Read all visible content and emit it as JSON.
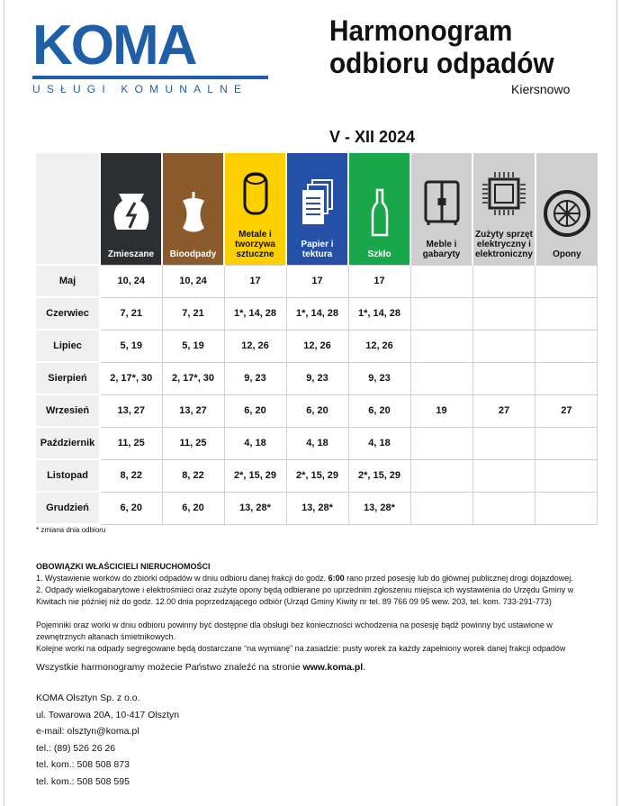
{
  "logo": {
    "word": "KOMA",
    "tagline": "USŁUGI KOMUNALNE",
    "brand_color": "#1f5fa8"
  },
  "header": {
    "title_line1": "Harmonogram",
    "title_line2": "odbioru odpadów",
    "location": "Kiersnowo",
    "period": "V - XII 2024"
  },
  "columns": [
    {
      "label": "Zmieszane",
      "color": "#2b2f31",
      "text": "#fff",
      "icon": "broken-jar-icon"
    },
    {
      "label": "Bioodpady",
      "color": "#8b5a2b",
      "text": "#fff",
      "icon": "apple-core-icon"
    },
    {
      "label": "Metale i tworzywa sztuczne",
      "color": "#ffd000",
      "text": "#111",
      "icon": "can-icon"
    },
    {
      "label": "Papier i tektura",
      "color": "#2450a8",
      "text": "#fff",
      "icon": "documents-icon"
    },
    {
      "label": "Szkło",
      "color": "#1aa64a",
      "text": "#fff",
      "icon": "bottle-icon"
    },
    {
      "label": "Meble i gabaryty",
      "color": "#cfcfd0",
      "text": "#111",
      "icon": "wardrobe-icon"
    },
    {
      "label": "Zużyty sprzęt elektryczny i elektroniczny",
      "color": "#cfcfd0",
      "text": "#111",
      "icon": "chip-icon"
    },
    {
      "label": "Opony",
      "color": "#cfcfd0",
      "text": "#111",
      "icon": "tire-icon"
    }
  ],
  "rows": [
    {
      "month": "Maj",
      "cells": [
        "10, 24",
        "10, 24",
        "17",
        "17",
        "17",
        "",
        "",
        ""
      ]
    },
    {
      "month": "Czerwiec",
      "cells": [
        "7, 21",
        "7, 21",
        "1*, 14, 28",
        "1*, 14, 28",
        "1*, 14, 28",
        "",
        "",
        ""
      ]
    },
    {
      "month": "Lipiec",
      "cells": [
        "5, 19",
        "5, 19",
        "12, 26",
        "12, 26",
        "12, 26",
        "",
        "",
        ""
      ]
    },
    {
      "month": "Sierpień",
      "cells": [
        "2, 17*, 30",
        "2, 17*, 30",
        "9, 23",
        "9, 23",
        "9, 23",
        "",
        "",
        ""
      ]
    },
    {
      "month": "Wrzesień",
      "cells": [
        "13, 27",
        "13, 27",
        "6, 20",
        "6, 20",
        "6, 20",
        "19",
        "27",
        "27"
      ]
    },
    {
      "month": "Październik",
      "cells": [
        "11, 25",
        "11, 25",
        "4, 18",
        "4, 18",
        "4, 18",
        "",
        "",
        ""
      ]
    },
    {
      "month": "Listopad",
      "cells": [
        "8, 22",
        "8, 22",
        "2*, 15, 29",
        "2*, 15, 29",
        "2*, 15, 29",
        "",
        "",
        ""
      ]
    },
    {
      "month": "Grudzień",
      "cells": [
        "6, 20",
        "6, 20",
        "13, 28*",
        "13, 28*",
        "13, 28*",
        "",
        "",
        ""
      ]
    }
  ],
  "footnote": "* zmiana dnia odbioru",
  "info": {
    "heading": "OBOWIĄZKI WŁAŚCICIELI NIERUCHOMOŚCI",
    "p1a": "1. Wystawienie worków do zbiórki odpadów w dniu odbioru danej frakcji do godz. ",
    "p1b": "6:00",
    "p1c": " rano przed posesję lub do głównej publicznej drogi dojazdowej.",
    "p2": "2. Odpady wielkogabarytowe i elektrośmieci oraz zużyte opony będą odbierane po uprzednim zgłoszeniu miejsca ich wystawienia do Urzędu Gminy w Kiwitach nie później niż do godz. 12.00 dnia poprzedzającego odbiór (Urząd Gminy Kiwity nr tel. 89 766 09 95 wew. 203, tel. kom. 733-291-773)",
    "p3": "Pojemniki oraz worki w dniu odbioru powinny być dostępne dla obsługi bez konieczności wchodzenia na posesję bądź powinny być ustawione w zewnętrznych altanach śmietnikowych.",
    "p4": "Kolejne worki na odpady segregowane będą dostarczane “na wymianę” na zasadzie: pusty worek za każdy zapełniony worek danej frakcji odpadów",
    "web_a": "Wszystkie harmonogramy możecie Państwo znaleźć na stronie ",
    "web_b": "www.koma.pl",
    "web_c": "."
  },
  "contact": [
    "KOMA Olsztyn Sp. z o.o.",
    "ul. Towarowa 20A, 10-417 Olsztyn",
    "e-mail: olsztyn@koma.pl",
    "tel.: (89) 526 26 26",
    "tel. kom.: 508 508 873",
    "tel. kom.: 508 508 595"
  ]
}
